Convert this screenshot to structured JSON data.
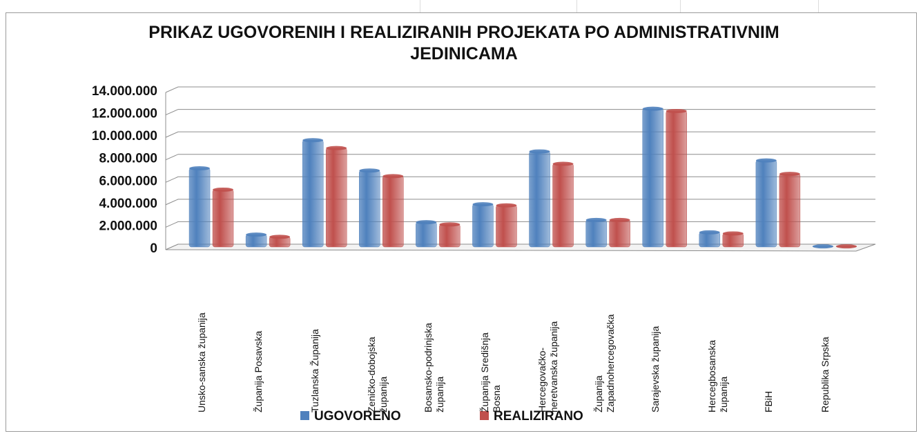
{
  "chart_data": {
    "type": "bar",
    "title": "PRIKAZ UGOVORENIH I REALIZIRANIH PROJEKATA PO ADMINISTRATIVNIM JEDINICAMA",
    "categories": [
      "Unsko-sanska županija",
      "Županija Posavska",
      "Tuzlanska Županija",
      "Zeničko-dobojska županija",
      "Bosansko-podrinjska županija",
      "Županija Središnja Bosna",
      "Hercegovačko-neretvanska županija",
      "Županija Zapadnohercegovačka",
      "Sarajevska županija",
      "Hercegbosanska županija",
      "FBiH",
      "Republika Srpska"
    ],
    "series": [
      {
        "name": "UGOVORENO",
        "color": "#4f81bd",
        "values": [
          7000000,
          1100000,
          9500000,
          6800000,
          2200000,
          3800000,
          8500000,
          2400000,
          12300000,
          1300000,
          7700000,
          50000
        ]
      },
      {
        "name": "REALIZIRANO",
        "color": "#c0504d",
        "values": [
          5100000,
          900000,
          8800000,
          6300000,
          2000000,
          3700000,
          7400000,
          2400000,
          12100000,
          1200000,
          6500000,
          50000
        ]
      }
    ],
    "ylim": [
      0,
      14000000
    ],
    "yticks": [
      {
        "value": 0,
        "label": "0"
      },
      {
        "value": 2000000,
        "label": "2.000.000"
      },
      {
        "value": 4000000,
        "label": "4.000.000"
      },
      {
        "value": 6000000,
        "label": "6.000.000"
      },
      {
        "value": 8000000,
        "label": "8.000.000"
      },
      {
        "value": 10000000,
        "label": "10.000.000"
      },
      {
        "value": 12000000,
        "label": "12.000.000"
      },
      {
        "value": 14000000,
        "label": "14.000.000"
      }
    ],
    "grid": true,
    "legend": "bottom"
  }
}
